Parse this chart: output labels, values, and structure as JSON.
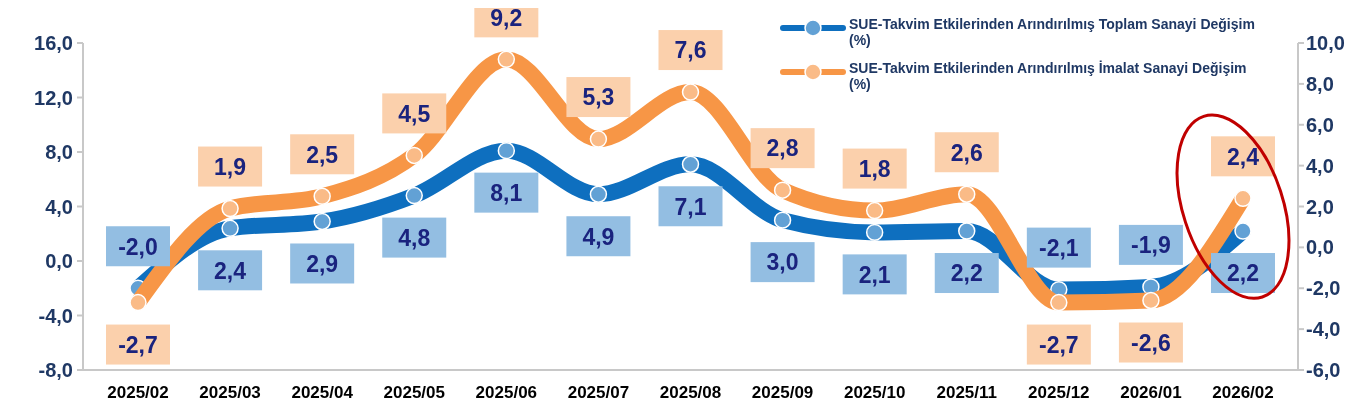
{
  "chart_data": {
    "type": "line",
    "categories": [
      "2025/02",
      "2025/03",
      "2025/04",
      "2025/05",
      "2025/06",
      "2025/07",
      "2025/08",
      "2025/09",
      "2025/10",
      "2025/11",
      "2025/12",
      "2026/01",
      "2026/02"
    ],
    "series": [
      {
        "name": "SUE-Takvim Etkilerinden Arındırılmış Toplam Sanayi Değişim (%)",
        "color": "#0e6fbf",
        "values": [
          -2.0,
          2.4,
          2.9,
          4.8,
          8.1,
          4.9,
          7.1,
          3.0,
          2.1,
          2.2,
          -2.1,
          -1.9,
          2.2
        ],
        "value_labels": [
          "-2,0",
          "2,4",
          "2,9",
          "4,8",
          "8,1",
          "4,9",
          "7,1",
          "3,0",
          "2,1",
          "2,2",
          "-2,1",
          "-1,9",
          "2,2"
        ]
      },
      {
        "name": "SUE-Takvim Etkilerinden Arındırılmış İmalat Sanayi Değişim (%)",
        "color": "#f79646",
        "axis": "y2",
        "values": [
          -2.7,
          1.9,
          2.5,
          4.5,
          9.2,
          5.3,
          7.6,
          2.8,
          1.8,
          2.6,
          -2.7,
          -2.6,
          2.4
        ],
        "value_labels": [
          "-2,7",
          "1,9",
          "2,5",
          "4,5",
          "9,2",
          "5,3",
          "7,6",
          "2,8",
          "1,8",
          "2,6",
          "-2,7",
          "-2,6",
          "2,4"
        ]
      }
    ],
    "ylim": [
      -8,
      16
    ],
    "yticks": [
      {
        "value": -8,
        "label": "-8,0"
      },
      {
        "value": -4,
        "label": "-4,0"
      },
      {
        "value": 0,
        "label": "0,0"
      },
      {
        "value": 4,
        "label": "4,0"
      },
      {
        "value": 8,
        "label": "8,0"
      },
      {
        "value": 12,
        "label": "12,0"
      },
      {
        "value": 16,
        "label": "16,0"
      }
    ],
    "y2lim": [
      -6,
      10
    ],
    "y2ticks": [
      {
        "value": -6,
        "label": "-6,0"
      },
      {
        "value": -4,
        "label": "-4,0"
      },
      {
        "value": -2,
        "label": "-2,0"
      },
      {
        "value": 0,
        "label": "0,0"
      },
      {
        "value": 2,
        "label": "2,0"
      },
      {
        "value": 4,
        "label": "4,0"
      },
      {
        "value": 6,
        "label": "6,0"
      },
      {
        "value": 8,
        "label": "8,0"
      },
      {
        "value": 10,
        "label": "10,0"
      }
    ],
    "marker": "circle",
    "line_style": "solid",
    "legend": "top right",
    "grid": false
  }
}
